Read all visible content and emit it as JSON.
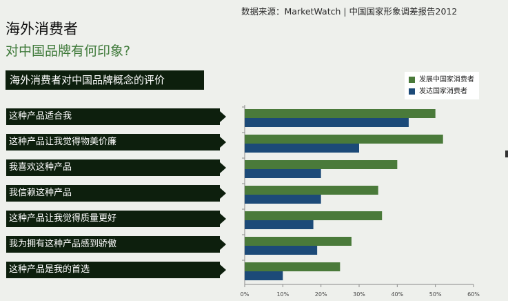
{
  "source": "数据来源：MarketWatch | 中国国家形象调差报告2012",
  "title_line1": "海外消费者",
  "title_line2": "对中国品牌有何印象?",
  "banner": "海外消费者对中国品牌概念的评价",
  "colors": {
    "developing": "#4a7a3a",
    "developed": "#1c4a78",
    "label_bg": "#0d1f0d"
  },
  "chart_data": {
    "type": "bar",
    "orientation": "horizontal",
    "categories": [
      "这种产品适合我",
      "这种产品让我觉得物美价廉",
      "我喜欢这种产品",
      "我信赖这种产品",
      "这种产品让我觉得质量更好",
      "我为拥有这种产品感到骄傲",
      "这种产品是我的首选"
    ],
    "series": [
      {
        "name": "发展中国家消费者",
        "values": [
          50,
          52,
          40,
          35,
          36,
          28,
          25
        ]
      },
      {
        "name": "发达国家消费者",
        "values": [
          43,
          30,
          20,
          20,
          18,
          19,
          10
        ]
      }
    ],
    "xlim": [
      0,
      60
    ],
    "xticks": [
      "0%",
      "10%",
      "20%",
      "30%",
      "40%",
      "50%",
      "60%"
    ],
    "legend_position": "top-right"
  }
}
